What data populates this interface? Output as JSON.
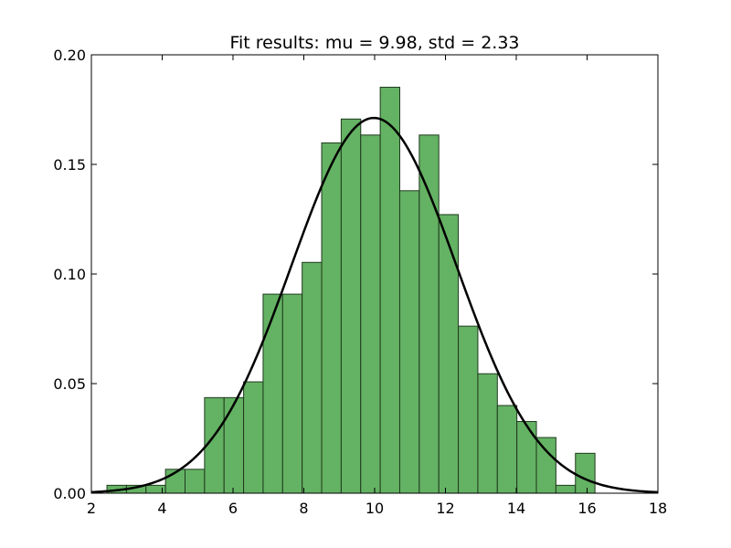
{
  "chart_data": {
    "type": "bar",
    "title": "Fit results: mu = 9.98,  std = 2.33",
    "xlabel": "",
    "ylabel": "",
    "xlim": [
      2,
      18
    ],
    "ylim": [
      0,
      0.2
    ],
    "x_ticks": [
      "2",
      "4",
      "6",
      "8",
      "10",
      "12",
      "14",
      "16",
      "18"
    ],
    "y_ticks": [
      "0.00",
      "0.05",
      "0.10",
      "0.15",
      "0.20"
    ],
    "grid": false,
    "bins": {
      "start": 2.44,
      "width": 0.5513,
      "values": [
        0.0036,
        0.0036,
        0.0036,
        0.0109,
        0.0109,
        0.0436,
        0.0436,
        0.0508,
        0.0908,
        0.0908,
        0.1053,
        0.1598,
        0.1707,
        0.1634,
        0.1852,
        0.138,
        0.1634,
        0.1271,
        0.0762,
        0.0545,
        0.04,
        0.0327,
        0.0254,
        0.0036,
        0.0182
      ]
    },
    "fit": {
      "mu": 9.98,
      "std": 2.33
    },
    "colors": {
      "bar_fill": "#64b263",
      "bar_edge": "#1f3a1f",
      "curve": "#000000"
    }
  }
}
